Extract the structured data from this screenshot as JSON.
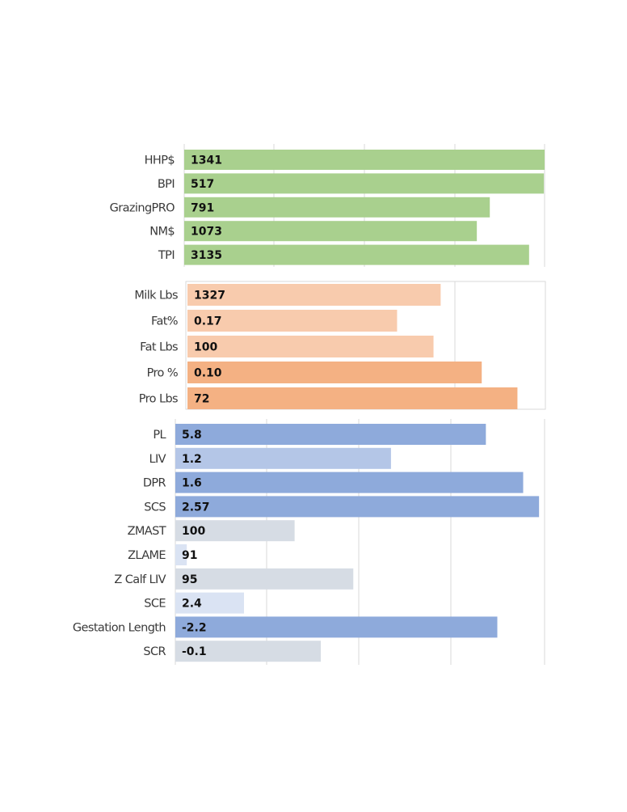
{
  "chart_data": [
    {
      "type": "bar",
      "orientation": "horizontal",
      "color": "#a9d08e",
      "categories": [
        "HHP$",
        "BPI",
        "GrazingPRO",
        "NM$",
        "TPI"
      ],
      "values": [
        1341,
        517,
        791,
        1073,
        3135
      ],
      "bar_lengths_percent": [
        100,
        99.8,
        84.8,
        81.2,
        95.7
      ],
      "bar_colors": [
        "#a9d08e",
        "#a9d08e",
        "#a9d08e",
        "#a9d08e",
        "#a9d08e"
      ]
    },
    {
      "type": "bar",
      "orientation": "horizontal",
      "categories": [
        "Milk Lbs",
        "Fat%",
        "Fat Lbs",
        "Pro %",
        "Pro Lbs"
      ],
      "values": [
        "1327",
        "0.17",
        "100",
        "0.10",
        "72"
      ],
      "bar_lengths_percent": [
        70.9,
        58.7,
        68.9,
        82.4,
        92.4
      ],
      "bar_colors": [
        "#f8cbad",
        "#f8cbad",
        "#f8cbad",
        "#f4b183",
        "#f4b183"
      ]
    },
    {
      "type": "bar",
      "orientation": "horizontal",
      "categories": [
        "PL",
        "LIV",
        "DPR",
        "SCS",
        "ZMAST",
        "ZLAME",
        "Z Calf LIV",
        "SCE",
        "Gestation Length",
        "SCR"
      ],
      "values": [
        "5.8",
        "1.2",
        "1.6",
        "2.57",
        "100",
        "91",
        "95",
        "2.4",
        "-2.2",
        "-0.1"
      ],
      "bar_lengths_percent": [
        84.1,
        58.4,
        94.2,
        98.5,
        32.3,
        3.1,
        48.2,
        18.6,
        87.2,
        39.4
      ],
      "bar_colors": [
        "#8eaadb",
        "#b4c6e7",
        "#8eaadb",
        "#8eaadb",
        "#d6dce4",
        "#dae3f3",
        "#d6dce4",
        "#dae3f3",
        "#8eaadb",
        "#d6dce4"
      ]
    }
  ]
}
